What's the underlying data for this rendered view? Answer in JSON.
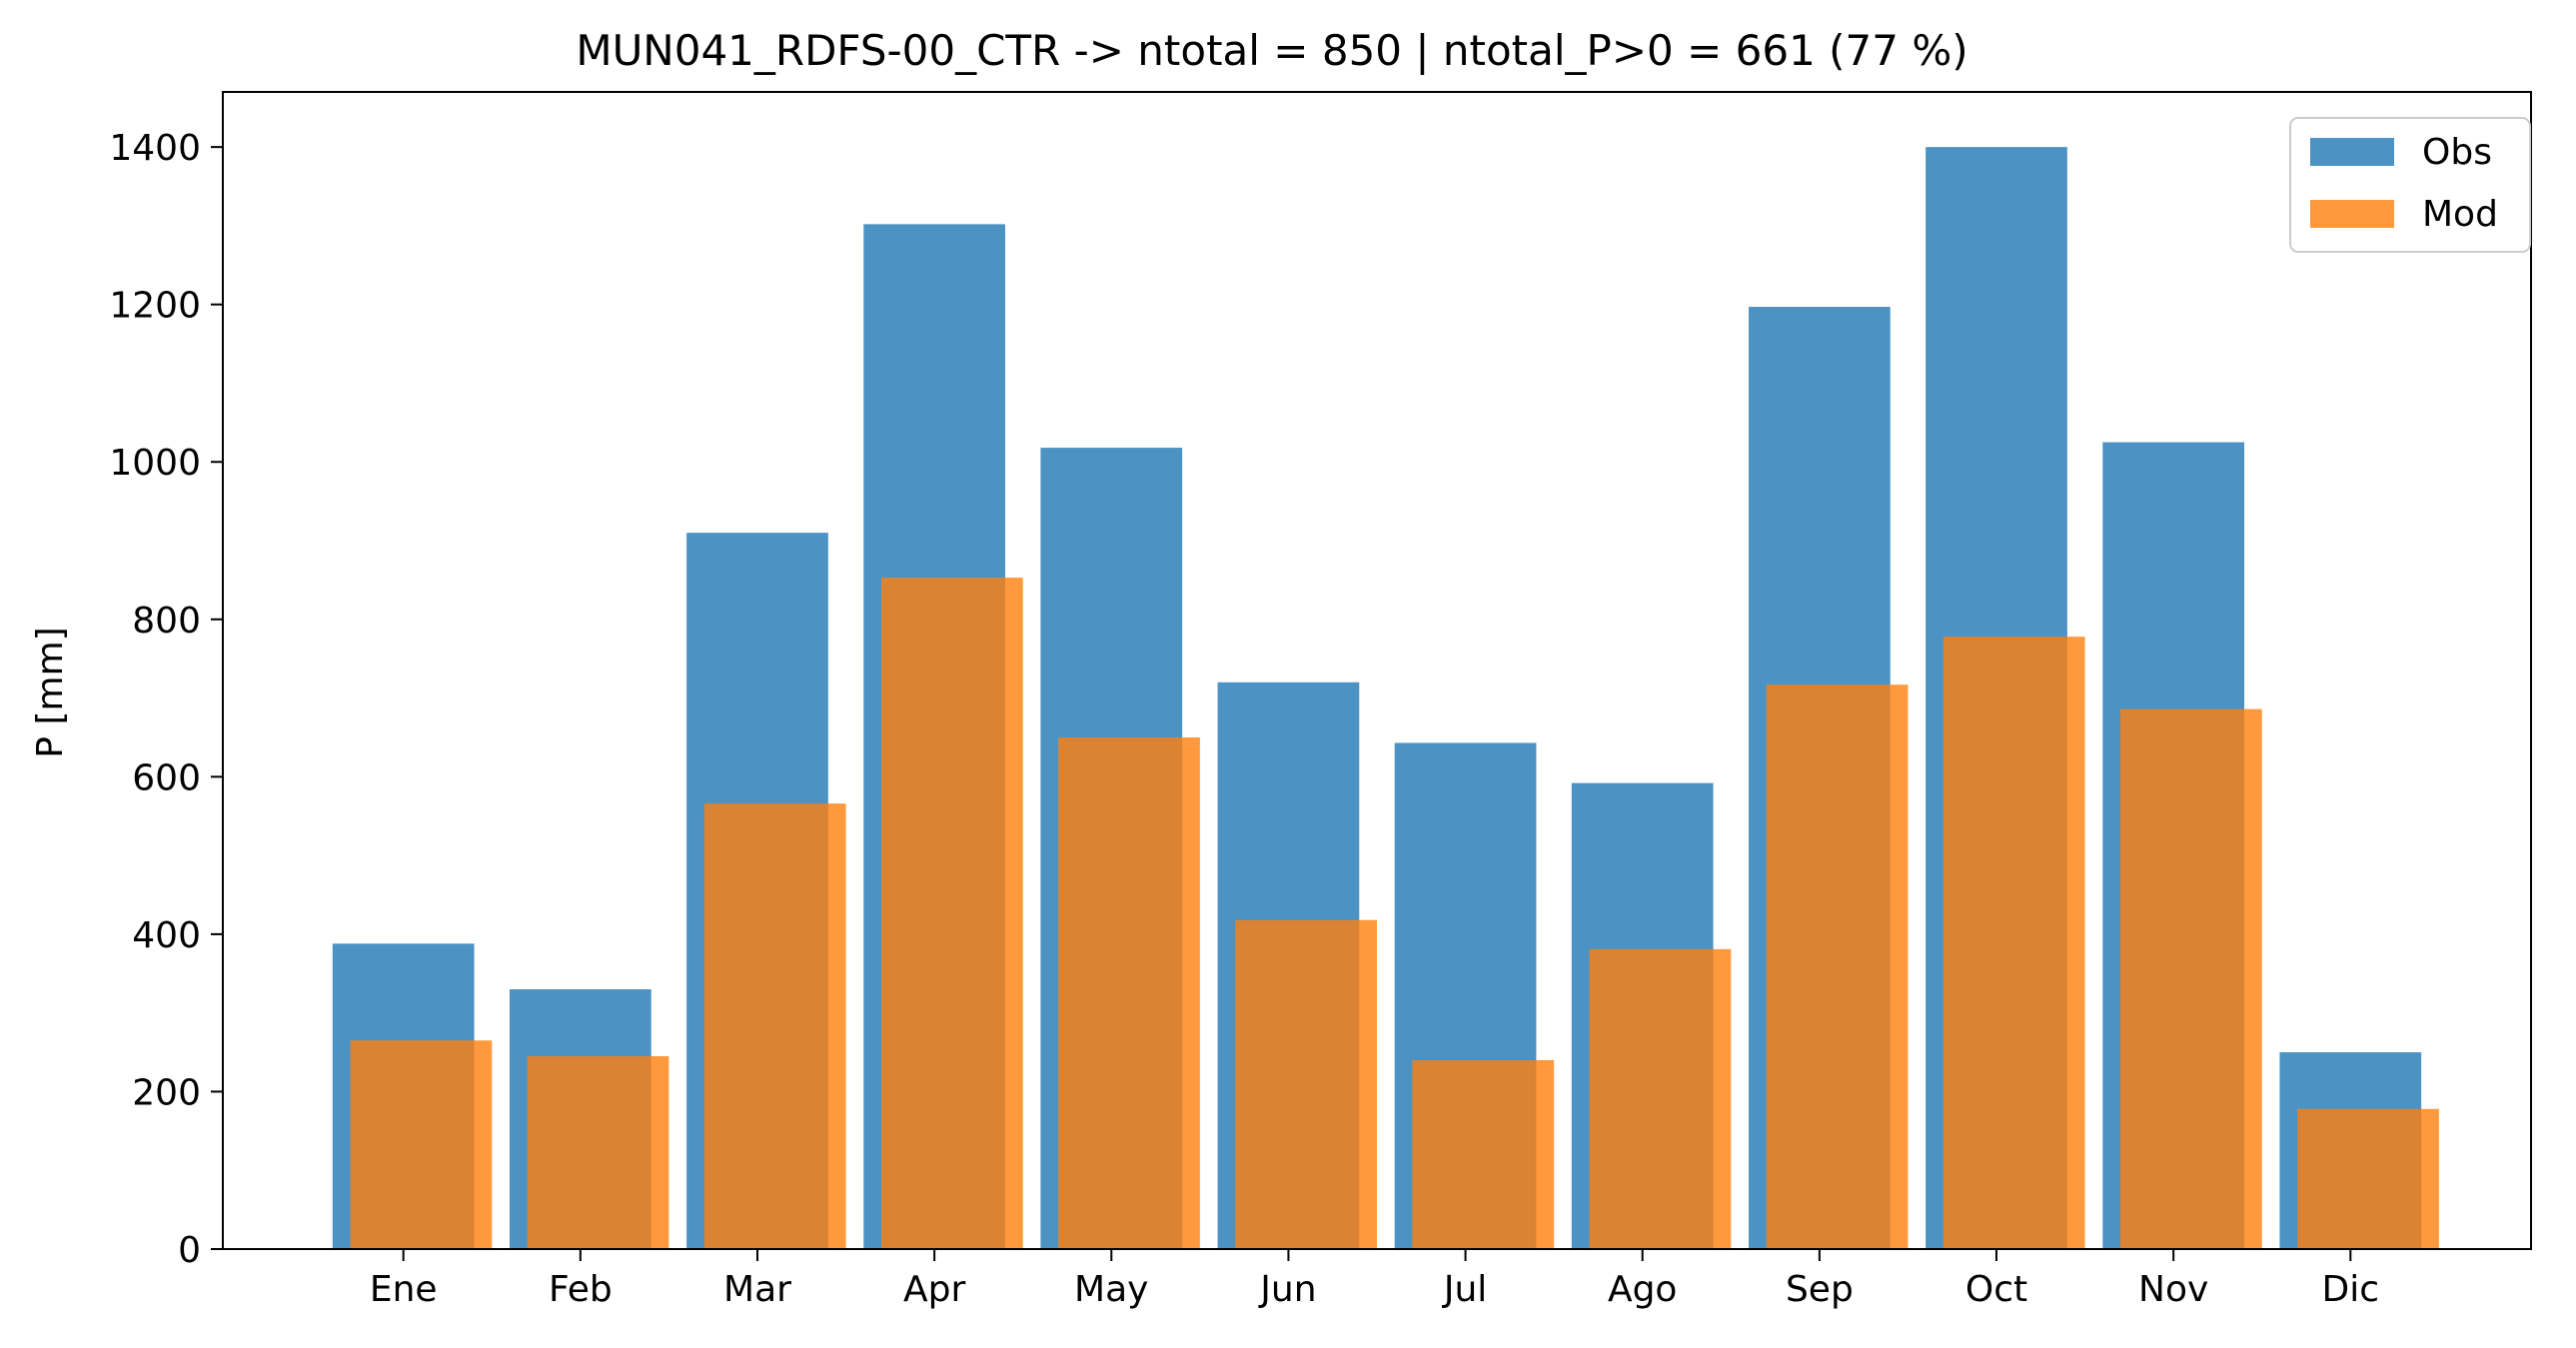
{
  "chart_data": {
    "type": "bar",
    "title": "MUN041_RDFS-00_CTR -> ntotal = 850 | ntotal_P>0 = 661 (77 %)",
    "xlabel": "",
    "ylabel": "P [mm]",
    "categories": [
      "Ene",
      "Feb",
      "Mar",
      "Apr",
      "May",
      "Jun",
      "Jul",
      "Ago",
      "Sep",
      "Oct",
      "Nov",
      "Dic"
    ],
    "series": [
      {
        "name": "Obs",
        "color": "#1f77b4",
        "values": [
          388,
          330,
          910,
          1302,
          1018,
          720,
          643,
          592,
          1197,
          1400,
          1025,
          250
        ]
      },
      {
        "name": "Mod",
        "color": "#ff7f0e",
        "values": [
          265,
          245,
          566,
          853,
          650,
          418,
          240,
          381,
          717,
          778,
          686,
          178
        ]
      }
    ],
    "ylim": [
      0,
      1470
    ],
    "yticks": [
      0,
      200,
      400,
      600,
      800,
      1000,
      1200,
      1400
    ],
    "grid": false,
    "legend": "top-right"
  }
}
